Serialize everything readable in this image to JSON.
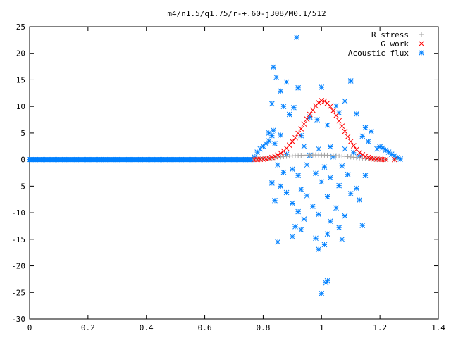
{
  "chart_data": {
    "type": "scatter",
    "title": "m4/n1.5/q1.75/r-+.60-j308/M0.1/512",
    "xlabel": "",
    "ylabel": "",
    "xlim": [
      0,
      1.4
    ],
    "ylim": [
      -30,
      25
    ],
    "x_ticks": [
      0,
      0.2,
      0.4,
      0.6,
      0.8,
      1,
      1.2,
      1.4
    ],
    "x_tick_labels": [
      "0",
      "0.2",
      "0.4",
      "0.6",
      "0.8",
      "1",
      "1.2",
      "1.4"
    ],
    "y_ticks": [
      -30,
      -25,
      -20,
      -15,
      -10,
      -5,
      0,
      5,
      10,
      15,
      20,
      25
    ],
    "y_tick_labels": [
      "-30",
      "-25",
      "-20",
      "-15",
      "-10",
      "-5",
      "0",
      "5",
      "10",
      "15",
      "20",
      "25"
    ],
    "grid": false,
    "legend_position": "top-right",
    "series": [
      {
        "name": "R stress",
        "marker": "plus",
        "color": "#a0a0a0",
        "points": [
          [
            0.77,
            0.05
          ],
          [
            0.78,
            0.08
          ],
          [
            0.79,
            0.12
          ],
          [
            0.8,
            0.16
          ],
          [
            0.81,
            0.21
          ],
          [
            0.82,
            0.26
          ],
          [
            0.83,
            0.32
          ],
          [
            0.84,
            0.38
          ],
          [
            0.85,
            0.44
          ],
          [
            0.86,
            0.5
          ],
          [
            0.87,
            0.56
          ],
          [
            0.88,
            0.61
          ],
          [
            0.89,
            0.66
          ],
          [
            0.9,
            0.7
          ],
          [
            0.91,
            0.74
          ],
          [
            0.92,
            0.77
          ],
          [
            0.93,
            0.8
          ],
          [
            0.94,
            0.82
          ],
          [
            0.95,
            0.84
          ],
          [
            0.96,
            0.85
          ],
          [
            0.97,
            0.86
          ],
          [
            0.98,
            0.86
          ],
          [
            0.99,
            0.86
          ],
          [
            1.0,
            0.85
          ],
          [
            1.01,
            0.84
          ],
          [
            1.02,
            0.82
          ],
          [
            1.03,
            0.8
          ],
          [
            1.04,
            0.77
          ],
          [
            1.05,
            0.74
          ],
          [
            1.06,
            0.7
          ],
          [
            1.07,
            0.66
          ],
          [
            1.08,
            0.61
          ],
          [
            1.09,
            0.56
          ],
          [
            1.1,
            0.5
          ],
          [
            1.11,
            0.44
          ],
          [
            1.12,
            0.38
          ],
          [
            1.13,
            0.32
          ],
          [
            1.14,
            0.26
          ],
          [
            1.15,
            0.21
          ],
          [
            1.16,
            0.16
          ],
          [
            1.17,
            0.12
          ],
          [
            1.18,
            0.08
          ],
          [
            1.19,
            0.05
          ],
          [
            1.2,
            0.03
          ],
          [
            1.22,
            0.01
          ],
          [
            1.25,
            0.0
          ]
        ]
      },
      {
        "name": "G work",
        "marker": "cross",
        "color": "#ff0000",
        "points": [
          [
            0.77,
            0.0
          ],
          [
            0.78,
            0.02
          ],
          [
            0.79,
            0.05
          ],
          [
            0.8,
            0.09
          ],
          [
            0.81,
            0.15
          ],
          [
            0.82,
            0.25
          ],
          [
            0.83,
            0.4
          ],
          [
            0.84,
            0.6
          ],
          [
            0.85,
            0.85
          ],
          [
            0.86,
            1.2
          ],
          [
            0.87,
            1.6
          ],
          [
            0.88,
            2.1
          ],
          [
            0.89,
            2.7
          ],
          [
            0.9,
            3.4
          ],
          [
            0.91,
            4.1
          ],
          [
            0.92,
            4.9
          ],
          [
            0.93,
            5.8
          ],
          [
            0.94,
            6.7
          ],
          [
            0.95,
            7.6
          ],
          [
            0.96,
            8.5
          ],
          [
            0.97,
            9.3
          ],
          [
            0.98,
            10.1
          ],
          [
            0.99,
            10.7
          ],
          [
            1.0,
            11.1
          ],
          [
            1.01,
            11.0
          ],
          [
            1.02,
            10.6
          ],
          [
            1.03,
            10.0
          ],
          [
            1.04,
            9.2
          ],
          [
            1.05,
            8.3
          ],
          [
            1.06,
            7.3
          ],
          [
            1.07,
            6.3
          ],
          [
            1.08,
            5.3
          ],
          [
            1.09,
            4.3
          ],
          [
            1.1,
            3.4
          ],
          [
            1.11,
            2.6
          ],
          [
            1.12,
            1.9
          ],
          [
            1.13,
            1.3
          ],
          [
            1.14,
            0.9
          ],
          [
            1.15,
            0.6
          ],
          [
            1.16,
            0.4
          ],
          [
            1.17,
            0.25
          ],
          [
            1.18,
            0.15
          ],
          [
            1.19,
            0.08
          ],
          [
            1.2,
            0.04
          ],
          [
            1.21,
            0.02
          ],
          [
            1.22,
            0.01
          ],
          [
            1.25,
            0.0
          ]
        ]
      },
      {
        "name": "Acoustic flux",
        "marker": "star",
        "color": "#0080ff",
        "points": [
          [
            0.0,
            0
          ],
          [
            0.02,
            0
          ],
          [
            0.04,
            0
          ],
          [
            0.06,
            0
          ],
          [
            0.08,
            0
          ],
          [
            0.1,
            0
          ],
          [
            0.12,
            0
          ],
          [
            0.14,
            0
          ],
          [
            0.16,
            0
          ],
          [
            0.18,
            0
          ],
          [
            0.2,
            0
          ],
          [
            0.22,
            0
          ],
          [
            0.24,
            0
          ],
          [
            0.26,
            0
          ],
          [
            0.28,
            0
          ],
          [
            0.3,
            0
          ],
          [
            0.32,
            0
          ],
          [
            0.34,
            0
          ],
          [
            0.36,
            0
          ],
          [
            0.38,
            0
          ],
          [
            0.4,
            0
          ],
          [
            0.42,
            0
          ],
          [
            0.44,
            0
          ],
          [
            0.46,
            0
          ],
          [
            0.48,
            0
          ],
          [
            0.5,
            0
          ],
          [
            0.52,
            0
          ],
          [
            0.54,
            0
          ],
          [
            0.56,
            0
          ],
          [
            0.58,
            0
          ],
          [
            0.6,
            0
          ],
          [
            0.62,
            0
          ],
          [
            0.64,
            0
          ],
          [
            0.66,
            0
          ],
          [
            0.68,
            0
          ],
          [
            0.7,
            0
          ],
          [
            0.72,
            0
          ],
          [
            0.74,
            0
          ],
          [
            0.76,
            0
          ],
          [
            0.77,
            0.5
          ],
          [
            0.78,
            1.4
          ],
          [
            0.79,
            2.0
          ],
          [
            0.8,
            2.5
          ],
          [
            0.81,
            3.0
          ],
          [
            0.82,
            3.5
          ],
          [
            0.83,
            4.5
          ],
          [
            0.835,
            5.5
          ],
          [
            1.19,
            2.0
          ],
          [
            1.2,
            2.4
          ],
          [
            1.21,
            2.2
          ],
          [
            1.22,
            1.8
          ],
          [
            1.23,
            1.4
          ],
          [
            1.24,
            1.0
          ],
          [
            1.25,
            0.7
          ],
          [
            1.26,
            0.4
          ],
          [
            1.27,
            0.1
          ],
          [
            0.915,
            23.0
          ],
          [
            0.835,
            17.4
          ],
          [
            0.845,
            15.5
          ],
          [
            0.88,
            14.6
          ],
          [
            1.1,
            14.8
          ],
          [
            0.86,
            12.9
          ],
          [
            0.92,
            13.5
          ],
          [
            1.0,
            13.6
          ],
          [
            1.08,
            11.0
          ],
          [
            0.83,
            10.5
          ],
          [
            0.87,
            10.0
          ],
          [
            0.905,
            9.8
          ],
          [
            1.05,
            10.1
          ],
          [
            0.89,
            8.5
          ],
          [
            0.96,
            8.0
          ],
          [
            0.985,
            7.5
          ],
          [
            1.02,
            6.5
          ],
          [
            1.06,
            8.8
          ],
          [
            1.12,
            8.6
          ],
          [
            1.15,
            6.0
          ],
          [
            1.17,
            5.3
          ],
          [
            0.82,
            5.0
          ],
          [
            0.86,
            4.6
          ],
          [
            0.93,
            4.5
          ],
          [
            1.14,
            4.4
          ],
          [
            1.16,
            3.4
          ],
          [
            0.84,
            3.0
          ],
          [
            0.94,
            2.5
          ],
          [
            0.99,
            2.0
          ],
          [
            1.03,
            2.4
          ],
          [
            1.08,
            2.0
          ],
          [
            1.11,
            1.3
          ],
          [
            0.88,
            1.0
          ],
          [
            0.96,
            0.8
          ],
          [
            1.04,
            0.5
          ],
          [
            1.13,
            0.6
          ],
          [
            0.85,
            -1.0
          ],
          [
            0.9,
            -1.8
          ],
          [
            0.95,
            -1.0
          ],
          [
            1.01,
            -1.4
          ],
          [
            1.07,
            -1.2
          ],
          [
            0.87,
            -2.4
          ],
          [
            0.92,
            -3.0
          ],
          [
            0.98,
            -2.6
          ],
          [
            1.03,
            -3.4
          ],
          [
            1.09,
            -2.8
          ],
          [
            1.15,
            -3.0
          ],
          [
            0.83,
            -4.4
          ],
          [
            0.86,
            -5.0
          ],
          [
            0.93,
            -5.6
          ],
          [
            1.0,
            -4.2
          ],
          [
            1.06,
            -4.9
          ],
          [
            1.12,
            -5.4
          ],
          [
            0.88,
            -6.2
          ],
          [
            0.95,
            -6.8
          ],
          [
            1.02,
            -7.0
          ],
          [
            1.1,
            -6.4
          ],
          [
            0.84,
            -7.7
          ],
          [
            0.9,
            -8.2
          ],
          [
            0.97,
            -8.8
          ],
          [
            1.05,
            -9.1
          ],
          [
            1.13,
            -7.6
          ],
          [
            0.92,
            -9.8
          ],
          [
            0.99,
            -10.3
          ],
          [
            1.08,
            -10.6
          ],
          [
            0.94,
            -11.2
          ],
          [
            1.03,
            -11.6
          ],
          [
            1.14,
            -12.4
          ],
          [
            0.91,
            -12.6
          ],
          [
            1.06,
            -12.8
          ],
          [
            0.93,
            -13.2
          ],
          [
            1.02,
            -14.0
          ],
          [
            0.9,
            -14.5
          ],
          [
            0.98,
            -14.8
          ],
          [
            1.07,
            -15.0
          ],
          [
            0.85,
            -15.5
          ],
          [
            1.01,
            -16.0
          ],
          [
            0.99,
            -16.9
          ],
          [
            1.02,
            -22.8
          ],
          [
            1.015,
            -23.2
          ],
          [
            1.0,
            -25.2
          ]
        ]
      }
    ]
  }
}
